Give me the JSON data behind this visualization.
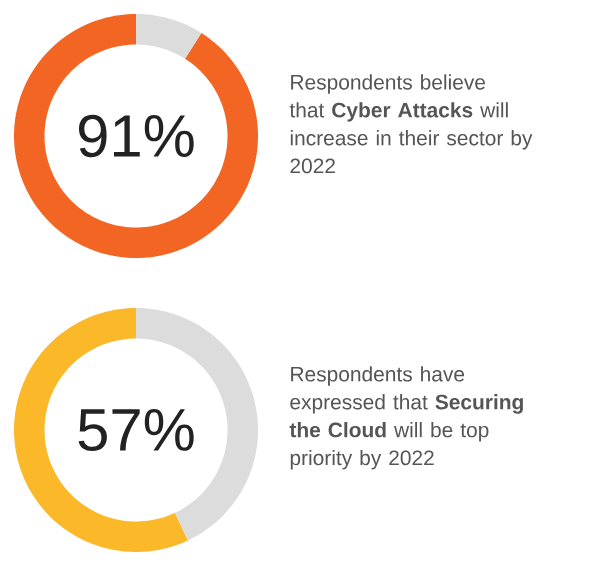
{
  "chart_data": [
    {
      "type": "donut",
      "categories": [
        null,
        null
      ],
      "values": [
        91,
        9
      ],
      "colors": [
        "#f26522",
        "#dcdcdc"
      ],
      "annotations": [
        "91%",
        "Respondents believe that **Cyber Attacks** will increase in their sector by 2022"
      ]
    },
    {
      "type": "donut",
      "categories": [
        null,
        null
      ],
      "values": [
        57,
        43
      ],
      "colors": [
        "#fbb829",
        "#dcdcdc"
      ],
      "annotations": [
        "57%",
        "Respondents have expressed that **Securing the Cloud** will be top priority by 2022"
      ]
    }
  ]
}
